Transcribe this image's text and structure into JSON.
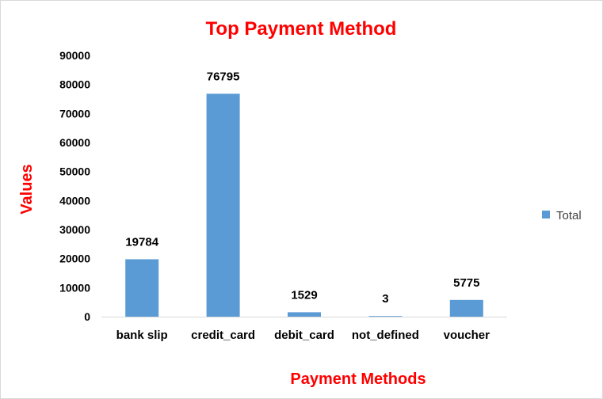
{
  "chart_data": {
    "type": "bar",
    "title": "Top Payment Method",
    "xlabel": "Payment Methods",
    "ylabel": "Values",
    "categories": [
      "bank slip",
      "credit_card",
      "debit_card",
      "not_defined",
      "voucher"
    ],
    "series": [
      {
        "name": "Total",
        "values": [
          19784,
          76795,
          1529,
          3,
          5775
        ]
      }
    ],
    "ylim": [
      0,
      90000
    ],
    "yticks": [
      "0",
      "10000",
      "20000",
      "30000",
      "40000",
      "50000",
      "60000",
      "70000",
      "80000",
      "90000"
    ],
    "grid": false,
    "legend": "right",
    "data_labels": true
  },
  "colors": {
    "bar": "#5b9bd5",
    "title": "#ff0000",
    "axis_title": "#ff0000"
  }
}
